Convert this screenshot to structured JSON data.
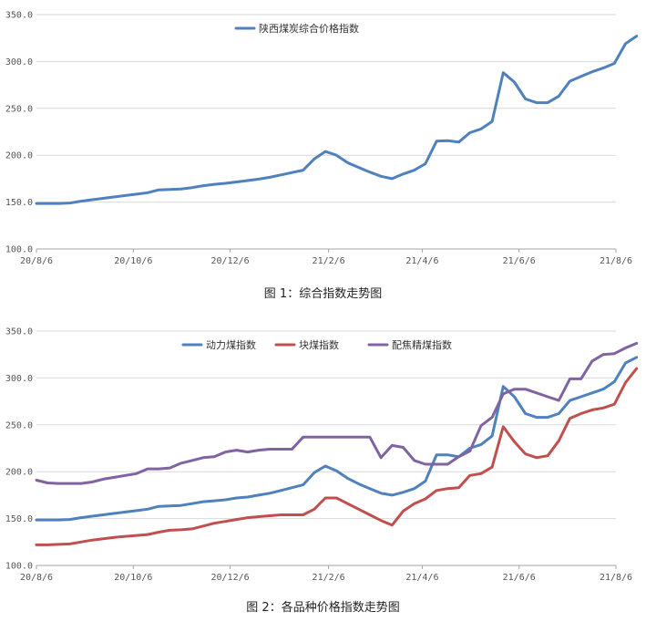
{
  "charts": [
    {
      "type": "line",
      "x_labels": [
        "20/8/6",
        "20/10/6",
        "20/12/6",
        "21/2/6",
        "21/4/6",
        "21/6/6",
        "21/8/6"
      ],
      "ylim": [
        100,
        350
      ],
      "y_ticks": [
        "100.0",
        "150.0",
        "200.0",
        "250.0",
        "300.0",
        "350.0"
      ],
      "grid": true,
      "legend_position": "top-center",
      "caption": "图 1：综合指数走势图",
      "series": [
        {
          "name": "陕西煤炭综合价格指数",
          "color": "#4f81bd",
          "points": [
            [
              "2020-08-06",
              148.5
            ],
            [
              "2020-08-13",
              148.5
            ],
            [
              "2020-08-20",
              148.5
            ],
            [
              "2020-08-27",
              149
            ],
            [
              "2020-09-03",
              151
            ],
            [
              "2020-09-10",
              152.5
            ],
            [
              "2020-09-17",
              154
            ],
            [
              "2020-09-24",
              155.5
            ],
            [
              "2020-10-01",
              157
            ],
            [
              "2020-10-08",
              158.5
            ],
            [
              "2020-10-15",
              160
            ],
            [
              "2020-10-22",
              163
            ],
            [
              "2020-10-29",
              163.5
            ],
            [
              "2020-11-05",
              164
            ],
            [
              "2020-11-12",
              165.5
            ],
            [
              "2020-11-19",
              167.5
            ],
            [
              "2020-11-26",
              169
            ],
            [
              "2020-12-03",
              170
            ],
            [
              "2020-12-10",
              171.5
            ],
            [
              "2020-12-17",
              173
            ],
            [
              "2020-12-24",
              174.5
            ],
            [
              "2020-12-31",
              176.5
            ],
            [
              "2021-01-07",
              179
            ],
            [
              "2021-01-14",
              181.5
            ],
            [
              "2021-01-21",
              184
            ],
            [
              "2021-01-28",
              196
            ],
            [
              "2021-02-04",
              204
            ],
            [
              "2021-02-11",
              200
            ],
            [
              "2021-02-18",
              192
            ],
            [
              "2021-02-25",
              187
            ],
            [
              "2021-03-04",
              182
            ],
            [
              "2021-03-11",
              177.5
            ],
            [
              "2021-03-18",
              175
            ],
            [
              "2021-03-25",
              180
            ],
            [
              "2021-04-01",
              184
            ],
            [
              "2021-04-08",
              191
            ],
            [
              "2021-04-15",
              215
            ],
            [
              "2021-04-22",
              215.5
            ],
            [
              "2021-04-29",
              214
            ],
            [
              "2021-05-06",
              224
            ],
            [
              "2021-05-13",
              228
            ],
            [
              "2021-05-20",
              236
            ],
            [
              "2021-05-27",
              288
            ],
            [
              "2021-06-03",
              278
            ],
            [
              "2021-06-10",
              260
            ],
            [
              "2021-06-17",
              256
            ],
            [
              "2021-06-24",
              256
            ],
            [
              "2021-07-01",
              263
            ],
            [
              "2021-07-08",
              279
            ],
            [
              "2021-07-15",
              284
            ],
            [
              "2021-07-22",
              289
            ],
            [
              "2021-07-29",
              293
            ],
            [
              "2021-08-05",
              298
            ],
            [
              "2021-08-12",
              319
            ],
            [
              "2021-08-19",
              327
            ]
          ]
        }
      ]
    },
    {
      "type": "line",
      "x_labels": [
        "20/8/6",
        "20/10/6",
        "20/12/6",
        "21/2/6",
        "21/4/6",
        "21/6/6",
        "21/8/6"
      ],
      "ylim": [
        100,
        350
      ],
      "y_ticks": [
        "100.0",
        "150.0",
        "200.0",
        "250.0",
        "300.0",
        "350.0"
      ],
      "grid": true,
      "legend_position": "top-center",
      "caption": "图 2：各品种价格指数走势图",
      "series": [
        {
          "name": "动力煤指数",
          "color": "#4f81bd",
          "points": [
            [
              "2020-08-06",
              148.5
            ],
            [
              "2020-08-13",
              148.5
            ],
            [
              "2020-08-20",
              148.5
            ],
            [
              "2020-08-27",
              149
            ],
            [
              "2020-09-03",
              151
            ],
            [
              "2020-09-10",
              152.5
            ],
            [
              "2020-09-17",
              154
            ],
            [
              "2020-09-24",
              155.5
            ],
            [
              "2020-10-01",
              157
            ],
            [
              "2020-10-08",
              158.5
            ],
            [
              "2020-10-15",
              160
            ],
            [
              "2020-10-22",
              163
            ],
            [
              "2020-10-29",
              163.5
            ],
            [
              "2020-11-05",
              164
            ],
            [
              "2020-11-12",
              166
            ],
            [
              "2020-11-19",
              168
            ],
            [
              "2020-11-26",
              169
            ],
            [
              "2020-12-03",
              170
            ],
            [
              "2020-12-10",
              172
            ],
            [
              "2020-12-17",
              173
            ],
            [
              "2020-12-24",
              175
            ],
            [
              "2020-12-31",
              177
            ],
            [
              "2021-01-07",
              180
            ],
            [
              "2021-01-14",
              183
            ],
            [
              "2021-01-21",
              186
            ],
            [
              "2021-01-28",
              199
            ],
            [
              "2021-02-04",
              206
            ],
            [
              "2021-02-11",
              201
            ],
            [
              "2021-02-18",
              193
            ],
            [
              "2021-02-25",
              187
            ],
            [
              "2021-03-04",
              182
            ],
            [
              "2021-03-11",
              177
            ],
            [
              "2021-03-18",
              175
            ],
            [
              "2021-03-25",
              178
            ],
            [
              "2021-04-01",
              182
            ],
            [
              "2021-04-08",
              190
            ],
            [
              "2021-04-15",
              218
            ],
            [
              "2021-04-22",
              218
            ],
            [
              "2021-04-29",
              216
            ],
            [
              "2021-05-06",
              225
            ],
            [
              "2021-05-13",
              229
            ],
            [
              "2021-05-20",
              238
            ],
            [
              "2021-05-27",
              291
            ],
            [
              "2021-06-03",
              280
            ],
            [
              "2021-06-10",
              262
            ],
            [
              "2021-06-17",
              258
            ],
            [
              "2021-06-24",
              258
            ],
            [
              "2021-07-01",
              262
            ],
            [
              "2021-07-08",
              276
            ],
            [
              "2021-07-15",
              280
            ],
            [
              "2021-07-22",
              284
            ],
            [
              "2021-07-29",
              288
            ],
            [
              "2021-08-05",
              296
            ],
            [
              "2021-08-12",
              316
            ],
            [
              "2021-08-19",
              322
            ]
          ]
        },
        {
          "name": "块煤指数",
          "color": "#c0504d",
          "points": [
            [
              "2020-08-06",
              122
            ],
            [
              "2020-08-13",
              122
            ],
            [
              "2020-08-20",
              122.5
            ],
            [
              "2020-08-27",
              123
            ],
            [
              "2020-09-03",
              125
            ],
            [
              "2020-09-10",
              127
            ],
            [
              "2020-09-17",
              128.5
            ],
            [
              "2020-09-24",
              130
            ],
            [
              "2020-10-01",
              131
            ],
            [
              "2020-10-08",
              132
            ],
            [
              "2020-10-15",
              133
            ],
            [
              "2020-10-22",
              135.5
            ],
            [
              "2020-10-29",
              137.5
            ],
            [
              "2020-11-05",
              138
            ],
            [
              "2020-11-12",
              139
            ],
            [
              "2020-11-19",
              142
            ],
            [
              "2020-11-26",
              145
            ],
            [
              "2020-12-03",
              147
            ],
            [
              "2020-12-10",
              149
            ],
            [
              "2020-12-17",
              151
            ],
            [
              "2020-12-24",
              152
            ],
            [
              "2020-12-31",
              153
            ],
            [
              "2021-01-07",
              154
            ],
            [
              "2021-01-14",
              154
            ],
            [
              "2021-01-21",
              154
            ],
            [
              "2021-01-28",
              160
            ],
            [
              "2021-02-04",
              172
            ],
            [
              "2021-02-11",
              172
            ],
            [
              "2021-02-18",
              166
            ],
            [
              "2021-02-25",
              160
            ],
            [
              "2021-03-04",
              154
            ],
            [
              "2021-03-11",
              148
            ],
            [
              "2021-03-18",
              143
            ],
            [
              "2021-03-25",
              158
            ],
            [
              "2021-04-01",
              166
            ],
            [
              "2021-04-08",
              171
            ],
            [
              "2021-04-15",
              180
            ],
            [
              "2021-04-22",
              182
            ],
            [
              "2021-04-29",
              183
            ],
            [
              "2021-05-06",
              196
            ],
            [
              "2021-05-13",
              198
            ],
            [
              "2021-05-20",
              205
            ],
            [
              "2021-05-27",
              248
            ],
            [
              "2021-06-03",
              232
            ],
            [
              "2021-06-10",
              219
            ],
            [
              "2021-06-17",
              215
            ],
            [
              "2021-06-24",
              217
            ],
            [
              "2021-07-01",
              233
            ],
            [
              "2021-07-08",
              257
            ],
            [
              "2021-07-15",
              262
            ],
            [
              "2021-07-22",
              266
            ],
            [
              "2021-07-29",
              268
            ],
            [
              "2021-08-05",
              272
            ],
            [
              "2021-08-12",
              295
            ],
            [
              "2021-08-19",
              310
            ]
          ]
        },
        {
          "name": "配焦精煤指数",
          "color": "#8064a2",
          "points": [
            [
              "2020-08-06",
              191
            ],
            [
              "2020-08-13",
              188
            ],
            [
              "2020-08-20",
              187.5
            ],
            [
              "2020-08-27",
              187.5
            ],
            [
              "2020-09-03",
              187.5
            ],
            [
              "2020-09-10",
              189
            ],
            [
              "2020-09-17",
              192
            ],
            [
              "2020-09-24",
              194
            ],
            [
              "2020-10-01",
              196
            ],
            [
              "2020-10-08",
              198
            ],
            [
              "2020-10-15",
              203
            ],
            [
              "2020-10-22",
              203
            ],
            [
              "2020-10-29",
              204
            ],
            [
              "2020-11-05",
              209
            ],
            [
              "2020-11-12",
              212
            ],
            [
              "2020-11-19",
              215
            ],
            [
              "2020-11-26",
              216
            ],
            [
              "2020-12-03",
              221
            ],
            [
              "2020-12-10",
              223
            ],
            [
              "2020-12-17",
              221
            ],
            [
              "2020-12-24",
              223
            ],
            [
              "2020-12-31",
              224
            ],
            [
              "2021-01-07",
              224
            ],
            [
              "2021-01-14",
              224
            ],
            [
              "2021-01-21",
              237
            ],
            [
              "2021-01-28",
              237
            ],
            [
              "2021-02-04",
              237
            ],
            [
              "2021-02-11",
              237
            ],
            [
              "2021-02-18",
              237
            ],
            [
              "2021-02-25",
              237
            ],
            [
              "2021-03-04",
              237
            ],
            [
              "2021-03-11",
              215
            ],
            [
              "2021-03-18",
              228
            ],
            [
              "2021-03-25",
              226
            ],
            [
              "2021-04-01",
              212
            ],
            [
              "2021-04-08",
              208
            ],
            [
              "2021-04-15",
              208
            ],
            [
              "2021-04-22",
              208
            ],
            [
              "2021-04-29",
              216
            ],
            [
              "2021-05-06",
              222
            ],
            [
              "2021-05-13",
              249
            ],
            [
              "2021-05-20",
              258
            ],
            [
              "2021-05-27",
              283
            ],
            [
              "2021-06-03",
              288
            ],
            [
              "2021-06-10",
              288
            ],
            [
              "2021-06-17",
              284
            ],
            [
              "2021-06-24",
              280
            ],
            [
              "2021-07-01",
              276
            ],
            [
              "2021-07-08",
              299
            ],
            [
              "2021-07-15",
              299
            ],
            [
              "2021-07-22",
              318
            ],
            [
              "2021-07-29",
              325
            ],
            [
              "2021-08-05",
              326
            ],
            [
              "2021-08-12",
              332
            ],
            [
              "2021-08-19",
              337
            ]
          ]
        }
      ]
    }
  ],
  "chart_data": [
    {
      "type": "line",
      "xlabel": "",
      "ylabel": "",
      "ylim": [
        100,
        350
      ],
      "series_ref": "charts.0.series"
    },
    {
      "type": "line",
      "xlabel": "",
      "ylabel": "",
      "ylim": [
        100,
        350
      ],
      "series_ref": "charts.1.series"
    }
  ]
}
